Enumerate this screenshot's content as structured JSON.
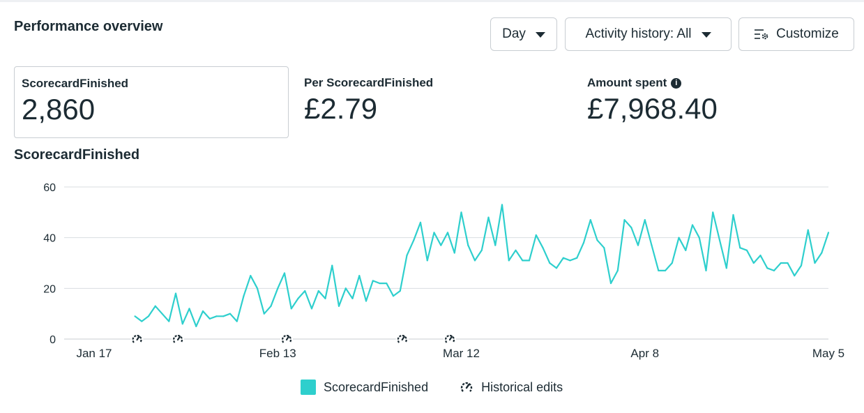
{
  "header": {
    "title": "Performance overview",
    "day_label": "Day",
    "activity_label": "Activity history: All",
    "customize_label": "Customize"
  },
  "metrics": [
    {
      "label": "ScorecardFinished",
      "value": "2,860"
    },
    {
      "label": "Per ScorecardFinished",
      "value": "£2.79"
    },
    {
      "label": "Amount spent",
      "value": "£7,968.40"
    }
  ],
  "colors": {
    "series": "#2ecfcd",
    "text": "#1c2b33",
    "grid": "#d9dde1"
  },
  "chart_data": {
    "type": "line",
    "title": "ScorecardFinished",
    "x_ticks": [
      "Jan 17",
      "Feb 13",
      "Mar 12",
      "Apr 8",
      "May 5"
    ],
    "x_tick_index": [
      0,
      27,
      54,
      81,
      108
    ],
    "y_ticks": [
      "0",
      "20",
      "40",
      "60"
    ],
    "ylim": [
      0,
      60
    ],
    "grid": true,
    "series": [
      {
        "name": "ScorecardFinished",
        "start_index": 6,
        "values": [
          9,
          7,
          9,
          13,
          10,
          7,
          18,
          6,
          12,
          5,
          11,
          8,
          9,
          9,
          10,
          7,
          17,
          25,
          20,
          10,
          13,
          20,
          26,
          12,
          16,
          19,
          12,
          19,
          16,
          29,
          13,
          20,
          16,
          25,
          15,
          23,
          22,
          22,
          17,
          19,
          33,
          39,
          46,
          31,
          42,
          37,
          42,
          34,
          50,
          37,
          31,
          35,
          48,
          37,
          53,
          31,
          35,
          31,
          31,
          41,
          36,
          30,
          28,
          32,
          31,
          32,
          38,
          47,
          39,
          36,
          22,
          27,
          47,
          44,
          37,
          47,
          37,
          27,
          27,
          30,
          40,
          35,
          45,
          40,
          27,
          50,
          39,
          28,
          49,
          36,
          35,
          30,
          33,
          28,
          27,
          30,
          30,
          25,
          29,
          43,
          30,
          34,
          42
        ]
      }
    ],
    "historical_edit_index": [
      6,
      12,
      28,
      45,
      52
    ],
    "legend": [
      "ScorecardFinished",
      "Historical edits"
    ],
    "legend_position": "bottom"
  }
}
